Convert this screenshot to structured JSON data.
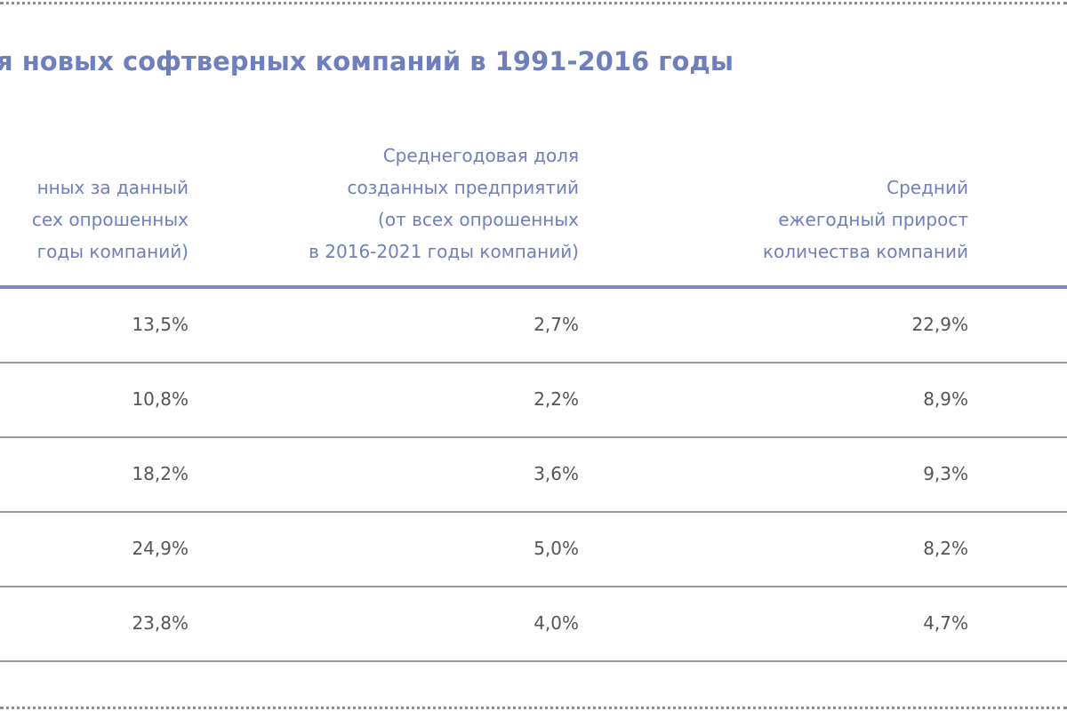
{
  "title": "я новых софтверных компаний в 1991-2016 годы",
  "columns": [
    {
      "lines": [
        "нных за данный",
        "сех опрошенных",
        "годы компаний)"
      ]
    },
    {
      "lines": [
        "Среднегодовая доля",
        "созданных  предприятий",
        "(от всех опрошенных",
        "в 2016-2021 годы компаний)"
      ]
    },
    {
      "lines": [
        "Средний",
        "ежегодный прирост",
        "количества компаний"
      ]
    }
  ],
  "rows": [
    {
      "c1": "13,5%",
      "c2": "2,7%",
      "c3": "22,9%"
    },
    {
      "c1": "10,8%",
      "c2": "2,2%",
      "c3": "8,9%"
    },
    {
      "c1": "18,2%",
      "c2": "3,6%",
      "c3": "9,3%"
    },
    {
      "c1": "24,9%",
      "c2": "5,0%",
      "c3": "8,2%"
    },
    {
      "c1": "23,8%",
      "c2": "4,0%",
      "c3": "4,7%"
    }
  ],
  "colors": {
    "accent": "#6e7fc0",
    "rule": "#7e8cc4",
    "text": "#555555",
    "row_divider": "#9a9a9a"
  }
}
